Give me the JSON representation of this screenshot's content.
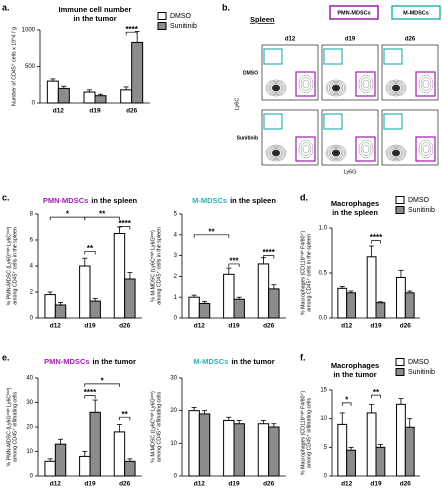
{
  "panel_labels": [
    "a.",
    "b.",
    "c.",
    "d.",
    "e.",
    "f."
  ],
  "flow_panel": {
    "title": "Spleen",
    "gates": [
      {
        "name": "PMN-MDSCs",
        "color": "#a21caf"
      },
      {
        "name": "M-MDSCs",
        "color": "#2bb3b8"
      }
    ],
    "columns": [
      "d12",
      "d19",
      "d26"
    ],
    "rows": [
      "DMSO",
      "Sunitinib"
    ],
    "x_label": "Ly6G",
    "y_label": "Ly6C"
  },
  "chart_data": [
    {
      "type": "bar",
      "title": [
        "Immune cell number",
        "in the tumor"
      ],
      "ylabel": [
        "Number of CD45⁺ cells x 10^4 / g"
      ],
      "categories": [
        "d12",
        "d19",
        "d26"
      ],
      "ylim": [
        0,
        1000
      ],
      "yticks": [
        0,
        500,
        1000
      ],
      "legend": "top-right",
      "series": [
        {
          "name": "DMSO",
          "color": "#ffffff",
          "values": [
            300,
            150,
            180
          ],
          "errors": [
            30,
            30,
            40
          ]
        },
        {
          "name": "Sunitinib",
          "color": "#8c8c8c",
          "values": [
            200,
            100,
            830
          ],
          "errors": [
            30,
            20,
            150
          ]
        }
      ],
      "annotations": [
        "****"
      ]
    },
    {
      "type": "bar",
      "title_highlight": "PMN-MDSCs",
      "title_color": "#a21caf",
      "title": [
        "in the spleen"
      ],
      "ylabel": [
        "% PMN-MDSC (Ly6Gʰⁱᵍʰ Ly6Cˡᵒʷ)",
        "among CD45⁺ cells in the spleen"
      ],
      "categories": [
        "d12",
        "d19",
        "d26"
      ],
      "ylim": [
        0,
        8
      ],
      "yticks": [
        0,
        2,
        4,
        6,
        8
      ],
      "series": [
        {
          "name": "DMSO",
          "color": "#ffffff",
          "values": [
            1.8,
            4.0,
            6.5
          ],
          "errors": [
            0.2,
            0.6,
            0.5
          ]
        },
        {
          "name": "Sunitinib",
          "color": "#8c8c8c",
          "values": [
            1.0,
            1.3,
            3.0
          ],
          "errors": [
            0.2,
            0.2,
            0.5
          ]
        }
      ],
      "annotations": [
        "*",
        "**",
        "**",
        "****"
      ]
    },
    {
      "type": "bar",
      "title_highlight": "M-MDSCs",
      "title_color": "#2bb3b8",
      "title": [
        "in the spleen"
      ],
      "ylabel": [
        "% M-MDSC (Ly6Cʰⁱᵍʰ Ly6Gˡᵒʷ)",
        "among CD45⁺ cells in the spleen"
      ],
      "categories": [
        "d12",
        "d19",
        "d26"
      ],
      "ylim": [
        0,
        5
      ],
      "yticks": [
        0,
        1,
        2,
        3,
        4,
        5
      ],
      "series": [
        {
          "name": "DMSO",
          "color": "#ffffff",
          "values": [
            1.0,
            2.1,
            2.6
          ],
          "errors": [
            0.1,
            0.3,
            0.3
          ]
        },
        {
          "name": "Sunitinib",
          "color": "#8c8c8c",
          "values": [
            0.7,
            0.9,
            1.4
          ],
          "errors": [
            0.1,
            0.1,
            0.2
          ]
        }
      ],
      "annotations": [
        "**",
        "***",
        "****"
      ]
    },
    {
      "type": "bar",
      "title": [
        "Macrophages",
        "in the spleen"
      ],
      "legend": "top-right",
      "ylabel": [
        "% Macrophages (CD11bʰⁱᵍʰ F4/80⁺)",
        "among CD45⁺ cells in the spleen"
      ],
      "categories": [
        "d12",
        "d19",
        "d26"
      ],
      "ylim": [
        0,
        1
      ],
      "yticks": [
        {
          "value": 0,
          "label": "0.0"
        },
        {
          "value": 0.5,
          "label": "0.5"
        },
        {
          "value": 1,
          "label": "1.0"
        }
      ],
      "series": [
        {
          "name": "DMSO",
          "color": "#ffffff",
          "values": [
            0.33,
            0.68,
            0.45
          ],
          "errors": [
            0.02,
            0.12,
            0.08
          ]
        },
        {
          "name": "Sunitinib",
          "color": "#8c8c8c",
          "values": [
            0.28,
            0.17,
            0.28
          ],
          "errors": [
            0.02,
            0.01,
            0.02
          ]
        }
      ],
      "annotations": [
        "****"
      ]
    },
    {
      "type": "bar",
      "title_highlight": "PMN-MDSCs",
      "title_color": "#a21caf",
      "title": [
        "in the tumor"
      ],
      "ylabel": [
        "% PMN-MDSC (Ly6Gʰⁱᵍʰ Ly6Cˡᵒʷ)",
        "among CD45⁺ infiltrating cells"
      ],
      "categories": [
        "d12",
        "d19",
        "d26"
      ],
      "ylim": [
        0,
        40
      ],
      "yticks": [
        0,
        10,
        20,
        30,
        40
      ],
      "series": [
        {
          "name": "DMSO",
          "color": "#ffffff",
          "values": [
            6,
            8,
            18
          ],
          "errors": [
            1,
            2,
            3
          ]
        },
        {
          "name": "Sunitinib",
          "color": "#8c8c8c",
          "values": [
            13,
            26,
            6
          ],
          "errors": [
            2,
            5,
            1
          ]
        }
      ],
      "annotations": [
        "*",
        "****",
        "**"
      ]
    },
    {
      "type": "bar",
      "title_highlight": "M-MDSCs",
      "title_color": "#2bb3b8",
      "title": [
        "in the tumor"
      ],
      "ylabel": [
        "% M-MDSC (Ly6Cʰⁱᵍʰ Ly6Gˡᵒʷ)",
        "among CD45⁺ infiltrating cells"
      ],
      "categories": [
        "d12",
        "d19",
        "d26"
      ],
      "ylim": [
        0,
        30
      ],
      "yticks": [
        0,
        10,
        20,
        30
      ],
      "series": [
        {
          "name": "DMSO",
          "color": "#ffffff",
          "values": [
            20,
            17,
            16
          ],
          "errors": [
            1,
            1,
            1
          ]
        },
        {
          "name": "Sunitinib",
          "color": "#8c8c8c",
          "values": [
            19,
            16,
            15
          ],
          "errors": [
            1,
            1,
            1
          ]
        }
      ],
      "annotations": []
    },
    {
      "type": "bar",
      "title": [
        "Macrophages",
        "in the tumor"
      ],
      "legend": "top-right",
      "ylabel": [
        "% Macrophages (CD11bʰⁱᵍʰ F4/80⁺)",
        "among CD45⁺ infiltrating cells"
      ],
      "categories": [
        "d12",
        "d19",
        "d26"
      ],
      "ylim": [
        0,
        15
      ],
      "yticks": [
        0,
        5,
        10,
        15
      ],
      "series": [
        {
          "name": "DMSO",
          "color": "#ffffff",
          "values": [
            9,
            11,
            12.5
          ],
          "errors": [
            2,
            1.5,
            1
          ]
        },
        {
          "name": "Sunitinib",
          "color": "#8c8c8c",
          "values": [
            4.5,
            5,
            8.5
          ],
          "errors": [
            0.5,
            0.5,
            1.5
          ]
        }
      ],
      "annotations": [
        "*",
        "**"
      ]
    }
  ]
}
